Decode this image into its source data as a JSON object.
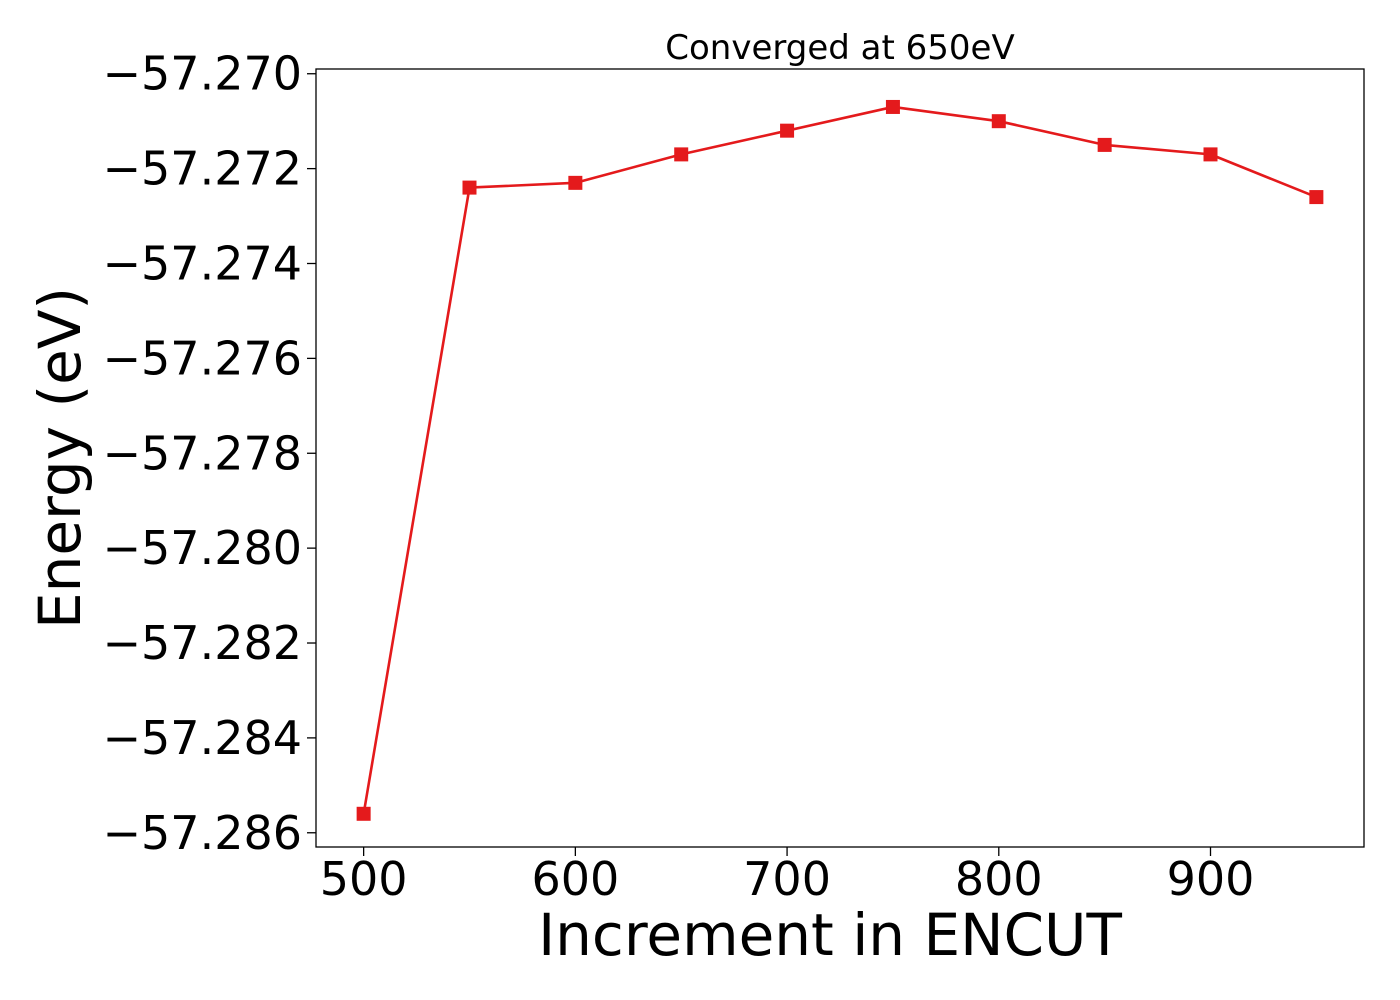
{
  "chart_data": {
    "type": "line",
    "title": "Converged at 650eV",
    "xlabel": "Increment in ENCUT",
    "ylabel": "Energy (eV)",
    "x": [
      500,
      550,
      600,
      650,
      700,
      750,
      800,
      850,
      900,
      950
    ],
    "series": [
      {
        "values": [
          -57.2856,
          -57.2724,
          -57.2723,
          -57.2717,
          -57.2712,
          -57.2707,
          -57.271,
          -57.2715,
          -57.2717,
          -57.2726
        ],
        "color": "#e41a1c",
        "marker": "square"
      }
    ],
    "xlim": [
      477.5,
      972.5
    ],
    "ylim": [
      -57.2863,
      -57.2699
    ],
    "x_ticks": [
      500,
      600,
      700,
      800,
      900
    ],
    "x_tick_labels": [
      "500",
      "600",
      "700",
      "800",
      "900"
    ],
    "y_ticks": [
      -57.27,
      -57.272,
      -57.274,
      -57.276,
      -57.278,
      -57.28,
      -57.282,
      -57.284,
      -57.286
    ],
    "y_tick_labels": [
      "−57.270",
      "−57.272",
      "−57.274",
      "−57.276",
      "−57.278",
      "−57.280",
      "−57.282",
      "−57.284",
      "−57.286"
    ],
    "grid": false,
    "legend": "none"
  }
}
